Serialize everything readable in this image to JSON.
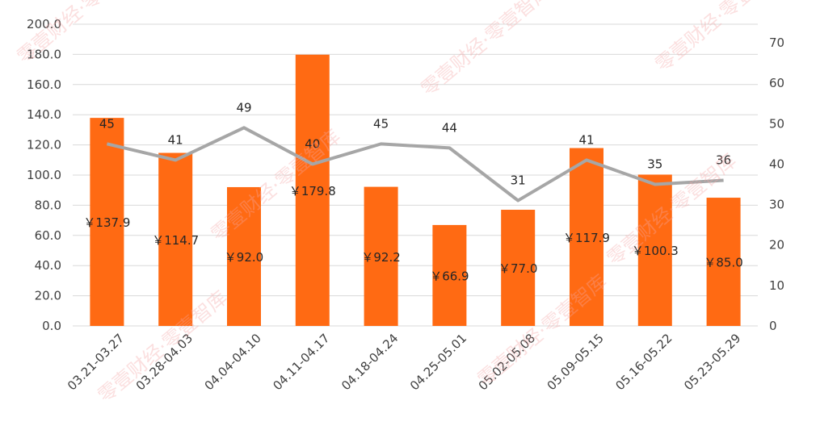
{
  "watermark_text": "零壹财经·零壹智库",
  "colors": {
    "bar": "#ff6a13",
    "line": "#a6a6a6",
    "grid": "#d9d9d9",
    "text": "#404040"
  },
  "chart_data": {
    "type": "bar",
    "categories": [
      "03.21-03.27",
      "03.28-04.03",
      "04.04-04.10",
      "04.11-04.17",
      "04.18-04.24",
      "04.25-05.01",
      "05.02-05.08",
      "05.09-05.15",
      "05.16-05.22",
      "05.23-05.29"
    ],
    "bar_values": [
      137.9,
      114.7,
      92.0,
      179.8,
      92.2,
      66.9,
      77.0,
      117.9,
      100.3,
      85.0
    ],
    "bar_labels": [
      "￥137.9",
      "￥114.7",
      "￥92.0",
      "￥179.8",
      "￥92.2",
      "￥66.9",
      "￥77.0",
      "￥117.9",
      "￥100.3",
      "￥85.0"
    ],
    "line_values": [
      45,
      41,
      49,
      40,
      45,
      44,
      31,
      41,
      35,
      36
    ],
    "line_labels": [
      "45",
      "41",
      "49",
      "40",
      "45",
      "44",
      "31",
      "41",
      "35",
      "36"
    ],
    "y_left": {
      "ylim": [
        0,
        200
      ],
      "ticks": [
        "0.0",
        "20.0",
        "40.0",
        "60.0",
        "80.0",
        "100.0",
        "120.0",
        "140.0",
        "160.0",
        "180.0",
        "200.0"
      ]
    },
    "y_right": {
      "ylim": [
        0,
        70
      ],
      "ticks": [
        "0",
        "10",
        "20",
        "30",
        "40",
        "50",
        "60",
        "70"
      ]
    },
    "grid": true
  }
}
